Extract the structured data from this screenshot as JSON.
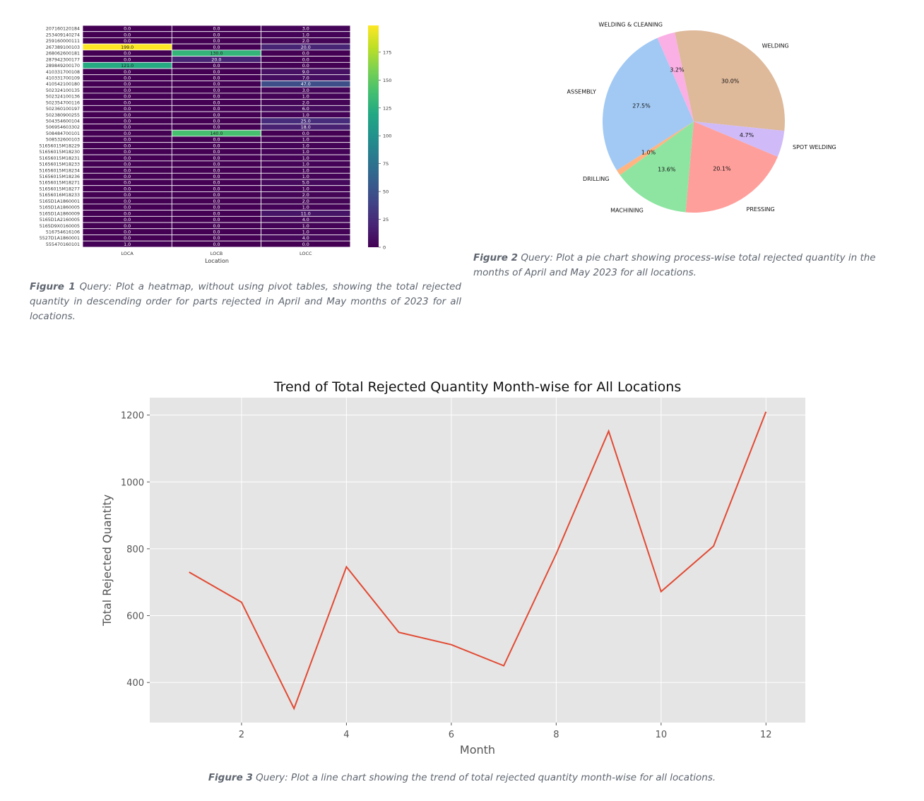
{
  "colors": {
    "heatmap_low": "#440154",
    "heatmap_high": "#fde725",
    "line": "#e24a33",
    "plot_bg": "#e5e5e5",
    "caption": "#5f6670",
    "pie": [
      "#deb99a",
      "#d0bbf8",
      "#ff9f9b",
      "#8de5a1",
      "#ffb482",
      "#a1c9f4",
      "#fab0e4"
    ]
  },
  "captions": {
    "fig1": {
      "label": "Figure 1",
      "text": "Query: Plot a heatmap, without using pivot tables, showing the total rejected quantity in descending order for parts rejected in April and May months of 2023 for all locations."
    },
    "fig2": {
      "label": "Figure 2",
      "text": "Query: Plot a pie chart showing process-wise total rejected quantity in the months of April and May 2023 for all locations."
    },
    "fig3": {
      "label": "Figure 3",
      "text": "Query: Plot a line chart showing the trend of total rejected quantity month-wise for all locations."
    }
  },
  "chart_data": [
    {
      "type": "heatmap",
      "title": "",
      "xlabel": "Location",
      "ylabel": "",
      "x_categories": [
        "LOCA",
        "LOCB",
        "LOCC"
      ],
      "y_categories": [
        "207160120184",
        "253409140274",
        "259160000111",
        "267389100103",
        "268062600181",
        "287942300177",
        "289849200170",
        "410331700108",
        "410331700109",
        "410542100180",
        "502324100135",
        "502324100136",
        "502354700116",
        "502360100197",
        "502380900255",
        "504354600104",
        "506954603302",
        "508484700101",
        "508532600103",
        "51656015M18229",
        "51656015M18230",
        "51656015M18231",
        "51656015M18233",
        "51656015M18234",
        "51656015M18236",
        "51656015M18271",
        "51656015M18277",
        "51656016M18233",
        "5165D1A1860001",
        "5165D1A1860005",
        "5165D1A1860009",
        "5165D1A2160005",
        "5165D9X0160005",
        "516754616106",
        "5527D1A1860001",
        "555470160101"
      ],
      "values": [
        [
          0,
          0,
          3
        ],
        [
          0,
          0,
          1
        ],
        [
          0,
          0,
          2
        ],
        [
          199,
          0,
          20
        ],
        [
          0,
          130,
          0
        ],
        [
          0,
          20,
          0
        ],
        [
          121,
          0,
          0
        ],
        [
          0,
          0,
          9
        ],
        [
          0,
          0,
          7
        ],
        [
          0,
          0,
          47
        ],
        [
          0,
          0,
          3
        ],
        [
          0,
          0,
          1
        ],
        [
          0,
          0,
          2
        ],
        [
          0,
          0,
          6
        ],
        [
          0,
          0,
          1
        ],
        [
          0,
          0,
          25
        ],
        [
          0,
          0,
          18
        ],
        [
          0,
          140,
          0
        ],
        [
          0,
          0,
          1
        ],
        [
          0,
          0,
          1
        ],
        [
          0,
          0,
          1
        ],
        [
          0,
          0,
          1
        ],
        [
          0,
          0,
          1
        ],
        [
          0,
          0,
          1
        ],
        [
          0,
          0,
          1
        ],
        [
          0,
          0,
          5
        ],
        [
          0,
          0,
          1
        ],
        [
          0,
          0,
          2
        ],
        [
          0,
          0,
          2
        ],
        [
          0,
          0,
          1
        ],
        [
          0,
          0,
          11
        ],
        [
          0,
          0,
          4
        ],
        [
          0,
          0,
          1
        ],
        [
          0,
          0,
          1
        ],
        [
          0,
          0,
          4
        ],
        [
          1,
          0,
          0
        ]
      ],
      "colorbar_ticks": [
        0,
        25,
        50,
        75,
        100,
        125,
        150,
        175
      ],
      "colorbar_range": [
        0,
        199
      ]
    },
    {
      "type": "pie",
      "title": "",
      "labels": [
        "WELDING",
        "SPOT WELDING",
        "PRESSING",
        "MACHINING",
        "DRILLING",
        "ASSEMBLY",
        "WELDING & CLEANING"
      ],
      "values": [
        30.0,
        4.7,
        20.1,
        13.6,
        1.0,
        27.5,
        3.2
      ],
      "pct_labels": [
        "30.0%",
        "4.7%",
        "20.1%",
        "13.6%",
        "1.0%",
        "27.5%",
        "3.2%"
      ]
    },
    {
      "type": "line",
      "title": "Trend of Total Rejected Quantity Month-wise for All Locations",
      "xlabel": "Month",
      "ylabel": "Total Rejected Quantity",
      "x": [
        1,
        2,
        3,
        4,
        5,
        6,
        7,
        8,
        9,
        10,
        11,
        12
      ],
      "series": [
        {
          "values": [
            730,
            640,
            322,
            746,
            550,
            513,
            450,
            785,
            1152,
            672,
            808,
            1210
          ]
        }
      ],
      "xlim": [
        0.25,
        12.75
      ],
      "ylim": [
        280,
        1252
      ],
      "x_ticks": [
        2,
        4,
        6,
        8,
        10,
        12
      ],
      "y_ticks": [
        400,
        600,
        800,
        1000,
        1200
      ],
      "grid": true
    }
  ]
}
